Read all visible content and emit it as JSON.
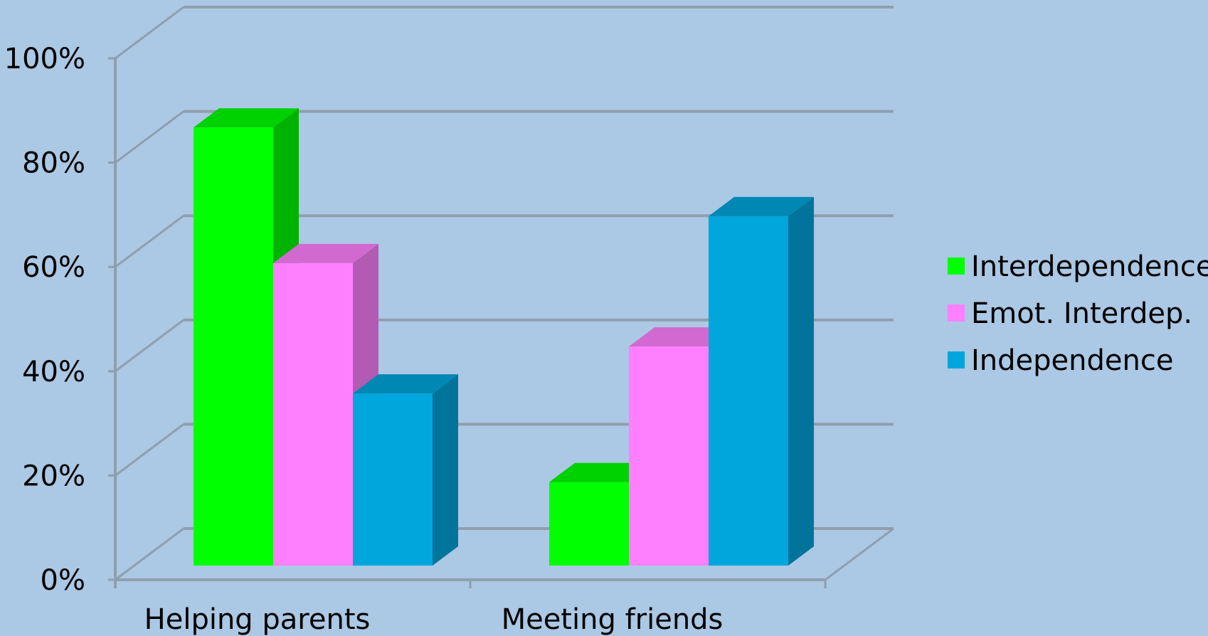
{
  "colors": {
    "background": "#abc8e4",
    "grid": "#8f9fae",
    "Interdependence": "#00ff00",
    "Emot. Interdep.": "#ff80ff",
    "Independence": "#00a6dc"
  },
  "chart_data": {
    "type": "bar",
    "style": "3d-clustered",
    "categories": [
      "Helping parents",
      "Meeting friends"
    ],
    "series": [
      {
        "name": "Interdependence",
        "values": [
          84,
          16
        ]
      },
      {
        "name": "Emot. Interdep.",
        "values": [
          58,
          42
        ]
      },
      {
        "name": "Independence",
        "values": [
          33,
          67
        ]
      }
    ],
    "ylim": [
      0,
      100
    ],
    "yticks": [
      "0%",
      "20%",
      "40%",
      "60%",
      "80%",
      "100%"
    ],
    "grid": true,
    "legend": "right",
    "title": "",
    "xlabel": "",
    "ylabel": ""
  }
}
